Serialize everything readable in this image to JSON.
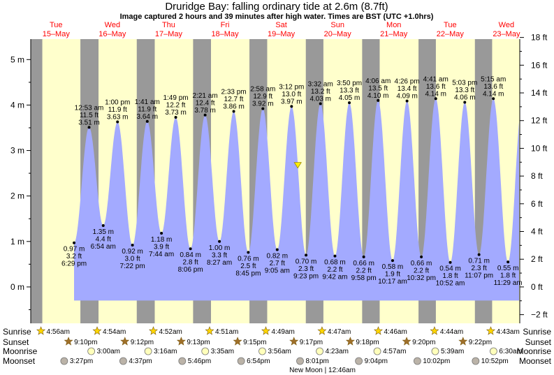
{
  "header": {
    "title": "Druridge Bay: falling  ordinary tide at 2.6m (8.7ft)",
    "subtitle": "Image captured 2 hours and 39 minutes after high water. Times are BST (UTC +1.0hrs)"
  },
  "colors": {
    "day": "#ffffcc",
    "night": "#999999",
    "tide_fill": "#a3aaff",
    "day_label": "#ff0000",
    "marker": "#ffee00",
    "sun_icon": "#ffd700",
    "sunset_icon": "#a0702a",
    "moonrise_icon": "#ffffbb",
    "moonset_icon": "#bbb3a8"
  },
  "chart_data": {
    "type": "area",
    "title": "Druridge Bay: falling  ordinary tide at 2.6m (8.7ft)",
    "subtitle": "Image captured 2 hours and 39 minutes after high water. Times are BST (UTC +1.0hrs)",
    "x_unit": "hours since Tue 15-May 00:00 BST",
    "y_left": {
      "unit": "m",
      "ticks": [
        0,
        1,
        2,
        3,
        4,
        5
      ],
      "tick_labels": [
        "0 m",
        "1 m",
        "2 m",
        "3 m",
        "4 m",
        "5 m"
      ],
      "range": [
        -0.8,
        5.45
      ]
    },
    "y_right": {
      "unit": "ft",
      "ticks": [
        -2,
        0,
        2,
        4,
        6,
        8,
        10,
        12,
        14,
        16,
        18
      ],
      "tick_labels": [
        "−2 ft",
        "0 ft",
        "2 ft",
        "4 ft",
        "6 ft",
        "8 ft",
        "10 ft",
        "12 ft",
        "14 ft",
        "16 ft",
        "18 ft"
      ]
    },
    "days": [
      {
        "name": "Tue",
        "date": "15–May"
      },
      {
        "name": "Wed",
        "date": "16–May"
      },
      {
        "name": "Thu",
        "date": "17–May"
      },
      {
        "name": "Fri",
        "date": "18–May"
      },
      {
        "name": "Sat",
        "date": "19–May"
      },
      {
        "name": "Sun",
        "date": "20–May"
      },
      {
        "name": "Mon",
        "date": "21–May"
      },
      {
        "name": "Tue",
        "date": "22–May"
      },
      {
        "name": "Wed",
        "date": "23–May"
      }
    ],
    "tides": [
      {
        "type": "low",
        "m": 0.97,
        "m_label": "0.97 m",
        "ft": "3.2 ft",
        "time": "6:29 pm",
        "hour": 18.48
      },
      {
        "type": "high",
        "m": 3.51,
        "m_label": "3.51 m",
        "ft": "11.5 ft",
        "time": "12:53 am",
        "hour": 24.88
      },
      {
        "type": "low",
        "m": 1.35,
        "m_label": "1.35 m",
        "ft": "4.4 ft",
        "time": "6:54 am",
        "hour": 30.9
      },
      {
        "type": "high",
        "m": 3.63,
        "m_label": "3.63 m",
        "ft": "11.9 ft",
        "time": "1:00 pm",
        "hour": 37.0
      },
      {
        "type": "low",
        "m": 0.92,
        "m_label": "0.92 m",
        "ft": "3.0 ft",
        "time": "7:22 pm",
        "hour": 43.37
      },
      {
        "type": "high",
        "m": 3.64,
        "m_label": "3.64 m",
        "ft": "11.9 ft",
        "time": "1:41 am",
        "hour": 49.68
      },
      {
        "type": "low",
        "m": 1.18,
        "m_label": "1.18 m",
        "ft": "3.9 ft",
        "time": "7:44 am",
        "hour": 55.73
      },
      {
        "type": "high",
        "m": 3.73,
        "m_label": "3.73 m",
        "ft": "12.2 ft",
        "time": "1:49 pm",
        "hour": 61.82
      },
      {
        "type": "low",
        "m": 0.84,
        "m_label": "0.84 m",
        "ft": "2.8 ft",
        "time": "8:06 pm",
        "hour": 68.1
      },
      {
        "type": "high",
        "m": 3.78,
        "m_label": "3.78 m",
        "ft": "12.4 ft",
        "time": "2:21 am",
        "hour": 74.35
      },
      {
        "type": "low",
        "m": 1.0,
        "m_label": "1.00 m",
        "ft": "3.3 ft",
        "time": "8:27 am",
        "hour": 80.45
      },
      {
        "type": "high",
        "m": 3.86,
        "m_label": "3.86 m",
        "ft": "12.7 ft",
        "time": "2:33 pm",
        "hour": 86.55
      },
      {
        "type": "low",
        "m": 0.76,
        "m_label": "0.76 m",
        "ft": "2.5 ft",
        "time": "8:45 pm",
        "hour": 92.75
      },
      {
        "type": "high",
        "m": 3.92,
        "m_label": "3.92 m",
        "ft": "12.9 ft",
        "time": "2:58 am",
        "hour": 98.97
      },
      {
        "type": "low",
        "m": 0.82,
        "m_label": "0.82 m",
        "ft": "2.7 ft",
        "time": "9:05 am",
        "hour": 105.08
      },
      {
        "type": "high",
        "m": 3.97,
        "m_label": "3.97 m",
        "ft": "13.0 ft",
        "time": "3:12 pm",
        "hour": 111.2
      },
      {
        "type": "low",
        "m": 0.7,
        "m_label": "0.70 m",
        "ft": "2.3 ft",
        "time": "9:23 pm",
        "hour": 117.38
      },
      {
        "type": "high",
        "m": 4.03,
        "m_label": "4.03 m",
        "ft": "13.2 ft",
        "time": "3:32 am",
        "hour": 123.53
      },
      {
        "type": "low",
        "m": 0.68,
        "m_label": "0.68 m",
        "ft": "2.2 ft",
        "time": "9:42 am",
        "hour": 129.7
      },
      {
        "type": "high",
        "m": 4.05,
        "m_label": "4.05 m",
        "ft": "13.3 ft",
        "time": "3:50 pm",
        "hour": 135.83
      },
      {
        "type": "low",
        "m": 0.66,
        "m_label": "0.66 m",
        "ft": "2.2 ft",
        "time": "9:58 pm",
        "hour": 141.97
      },
      {
        "type": "high",
        "m": 4.1,
        "m_label": "4.10 m",
        "ft": "13.5 ft",
        "time": "4:06 am",
        "hour": 148.1
      },
      {
        "type": "low",
        "m": 0.58,
        "m_label": "0.58 m",
        "ft": "1.9 ft",
        "time": "10:17 am",
        "hour": 154.28
      },
      {
        "type": "high",
        "m": 4.09,
        "m_label": "4.09 m",
        "ft": "13.4 ft",
        "time": "4:26 pm",
        "hour": 160.43
      },
      {
        "type": "low",
        "m": 0.66,
        "m_label": "0.66 m",
        "ft": "2.2 ft",
        "time": "10:32 pm",
        "hour": 166.53
      },
      {
        "type": "high",
        "m": 4.14,
        "m_label": "4.14 m",
        "ft": "13.6 ft",
        "time": "4:41 am",
        "hour": 172.68
      },
      {
        "type": "low",
        "m": 0.54,
        "m_label": "0.54 m",
        "ft": "1.8 ft",
        "time": "10:52 am",
        "hour": 178.87
      },
      {
        "type": "high",
        "m": 4.06,
        "m_label": "4.06 m",
        "ft": "13.3 ft",
        "time": "5:03 pm",
        "hour": 185.05
      },
      {
        "type": "low",
        "m": 0.71,
        "m_label": "0.71 m",
        "ft": "2.3 ft",
        "time": "11:07 pm",
        "hour": 191.12
      },
      {
        "type": "high",
        "m": 4.14,
        "m_label": "4.14 m",
        "ft": "13.6 ft",
        "time": "5:15 am",
        "hour": 197.25
      },
      {
        "type": "low",
        "m": 0.55,
        "m_label": "0.55 m",
        "ft": "1.8 ft",
        "time": "11:29 am",
        "hour": 203.48
      }
    ],
    "current": {
      "m": 2.6,
      "hour": 113.85
    },
    "sun": [
      {
        "rise": "4:56am",
        "rise_h": 4.93,
        "set": "9:10pm",
        "set_h": 21.17
      },
      {
        "rise": "4:54am",
        "rise_h": 28.9,
        "set": "9:12pm",
        "set_h": 45.2
      },
      {
        "rise": "4:52am",
        "rise_h": 52.87,
        "set": "9:13pm",
        "set_h": 69.22
      },
      {
        "rise": "4:51am",
        "rise_h": 76.85,
        "set": "9:15pm",
        "set_h": 93.25
      },
      {
        "rise": "4:49am",
        "rise_h": 100.82,
        "set": "9:17pm",
        "set_h": 117.28
      },
      {
        "rise": "4:47am",
        "rise_h": 124.78,
        "set": "9:18pm",
        "set_h": 141.3
      },
      {
        "rise": "4:46am",
        "rise_h": 148.77,
        "set": "9:20pm",
        "set_h": 165.33
      },
      {
        "rise": "4:44am",
        "rise_h": 172.73,
        "set": "9:22pm",
        "set_h": 189.37
      },
      {
        "rise": "4:43am",
        "rise_h": 196.72,
        "set": null,
        "set_h": null
      }
    ],
    "moonrise": [
      {
        "time": "3:00am",
        "hour": 27.0
      },
      {
        "time": "3:16am",
        "hour": 51.27
      },
      {
        "time": "3:35am",
        "hour": 75.58
      },
      {
        "time": "3:56am",
        "hour": 99.93
      },
      {
        "time": "4:23am",
        "hour": 124.38
      },
      {
        "time": "4:57am",
        "hour": 148.95
      },
      {
        "time": "5:39am",
        "hour": 173.65
      },
      {
        "time": "6:30am",
        "hour": 198.5
      }
    ],
    "moonset": [
      {
        "time": "3:27pm",
        "hour": 15.45
      },
      {
        "time": "4:37pm",
        "hour": 40.62
      },
      {
        "time": "5:46pm",
        "hour": 65.77
      },
      {
        "time": "6:54pm",
        "hour": 90.9
      },
      {
        "time": "8:01pm",
        "hour": 116.02
      },
      {
        "time": "9:04pm",
        "hour": 141.07
      },
      {
        "time": "10:02pm",
        "hour": 166.03
      },
      {
        "time": "10:52pm",
        "hour": 190.87
      }
    ],
    "rows": {
      "sunrise": "Sunrise",
      "sunset": "Sunset",
      "moonrise": "Moonrise",
      "moonset": "Moonset"
    },
    "note": "New Moon | 12:46am"
  }
}
